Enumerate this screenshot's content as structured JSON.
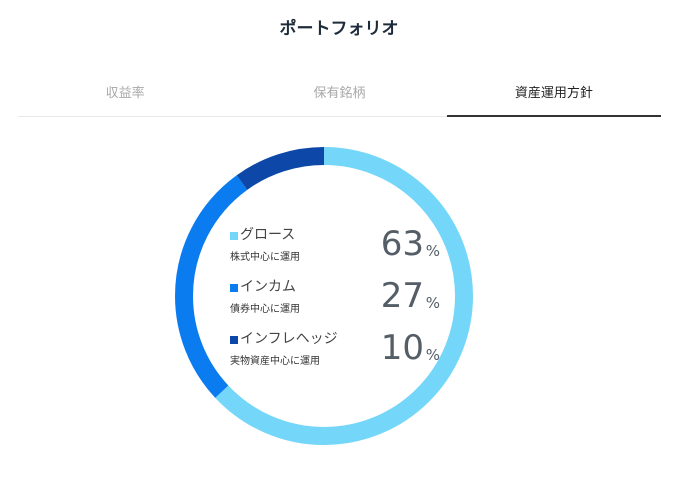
{
  "page": {
    "title": "ポートフォリオ"
  },
  "tabs": [
    {
      "label": "収益率",
      "active": false
    },
    {
      "label": "保有銘柄",
      "active": false
    },
    {
      "label": "資産運用方針",
      "active": true
    }
  ],
  "colors": {
    "growth": "#74d6f8",
    "income": "#0a7cf0",
    "inflation_hedge": "#0d47a8",
    "active_tab_underline": "#333333"
  },
  "chart_data": {
    "type": "pie",
    "style": "donut",
    "categories": [
      "グロース",
      "インカム",
      "インフレヘッジ"
    ],
    "values": [
      63,
      27,
      10
    ],
    "unit": "%"
  },
  "legend": [
    {
      "name": "グロース",
      "desc": "株式中心に運用",
      "value": "63",
      "unit": "%",
      "color": "#74d6f8"
    },
    {
      "name": "インカム",
      "desc": "債券中心に運用",
      "value": "27",
      "unit": "%",
      "color": "#0a7cf0"
    },
    {
      "name": "インフレヘッジ",
      "desc": "実物資産中心に運用",
      "value": "10",
      "unit": "%",
      "color": "#0d47a8"
    }
  ]
}
